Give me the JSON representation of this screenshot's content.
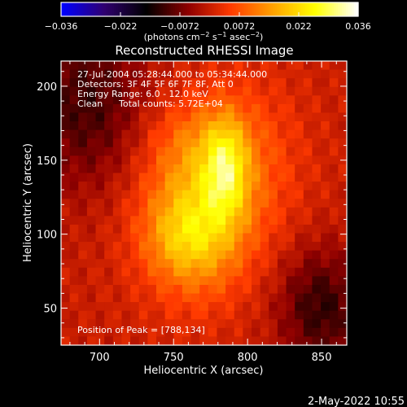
{
  "chart_data": {
    "type": "heatmap",
    "title": "Reconstructed RHESSI Image",
    "xlabel": "Heliocentric X (arcsec)",
    "ylabel": "Heliocentric Y (arcsec)",
    "xlim": [
      674,
      867
    ],
    "ylim": [
      25,
      217
    ],
    "x_ticks": [
      700,
      750,
      800,
      850
    ],
    "y_ticks": [
      50,
      100,
      150,
      200
    ],
    "colorbar": {
      "range": [
        -0.036,
        0.036
      ],
      "ticks": [
        "−0.036",
        "−0.022",
        "−0.0072",
        "0.0072",
        "0.022",
        "0.036"
      ],
      "unit_prefix": "(photons cm",
      "unit_sup1": "−2",
      "unit_mid": " s",
      "unit_sup2": "−1",
      "unit_mid2": " asec",
      "unit_sup3": "−2",
      "unit_suffix": ")",
      "colors": [
        "#0000ff",
        "#300070",
        "#000000",
        "#8f0000",
        "#ff3a00",
        "#ffa200",
        "#ffff00",
        "#ffffff"
      ]
    },
    "annotations": {
      "time_range": "27-Jul-2004 05:28:44.000 to 05:34:44.000",
      "detectors": "Detectors: 3F 4F 5F 6F 7F 8F, Att 0",
      "energy_range": "Energy Range: 6.0 - 12.0 keV",
      "method": "Clean",
      "total_counts": "Total counts: 5.72E+04",
      "peak_position": "Position of Peak = [788,134]"
    },
    "peak": [
      788,
      134
    ],
    "sources": [
      {
        "x": 785,
        "y": 145,
        "sigma_x": 10,
        "sigma_y": 23,
        "amplitude": 0.016
      },
      {
        "x": 764,
        "y": 108,
        "sigma_x": 26,
        "sigma_y": 36,
        "amplitude": 0.017
      },
      {
        "x": 758,
        "y": 96,
        "sigma_x": 17,
        "sigma_y": 17,
        "amplitude": 0.006
      },
      {
        "x": 793,
        "y": 150,
        "sigma_x": 30,
        "sigma_y": 40,
        "amplitude": 0.008
      },
      {
        "x": 760,
        "y": 165,
        "sigma_x": 22,
        "sigma_y": 18,
        "amplitude": 0.004
      }
    ],
    "background": 0.0
  },
  "footer": {
    "timestamp": "2-May-2022 10:55"
  }
}
